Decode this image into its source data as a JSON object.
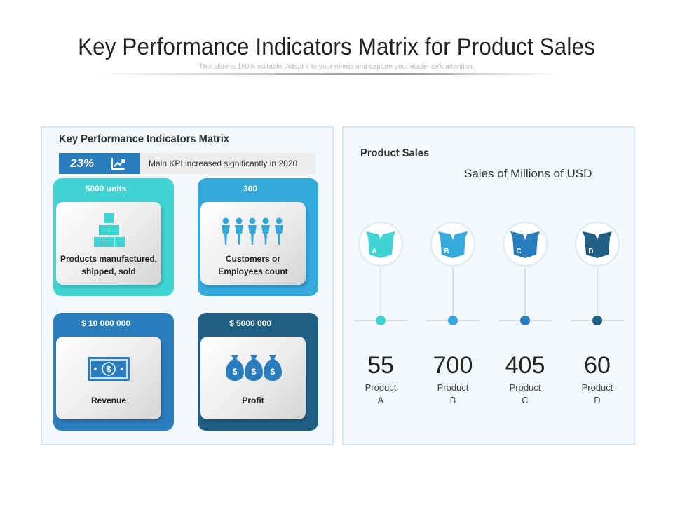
{
  "header": {
    "title": "Key Performance Indicators Matrix for Product Sales",
    "subtitle": "This slide is 100% editable. Adapt it to your needs and capture your audience's attention."
  },
  "left_panel": {
    "title": "Key Performance Indicators Matrix",
    "kpi": {
      "percent": "23%",
      "icon": "trend-up-icon",
      "text": "Main KPI increased significantly in 2020"
    },
    "cards": [
      {
        "value": "5000 units",
        "label_line1": "Products manufactured,",
        "label_line2": "shipped, sold",
        "icon": "boxes-stack-icon",
        "color": "#3fd3d3"
      },
      {
        "value": "300",
        "label_line1": "Customers or",
        "label_line2": "Employees count",
        "icon": "people-group-icon",
        "color": "#35a8dc"
      },
      {
        "value": "$ 10 000 000",
        "label_line1": "Revenue",
        "icon": "banknote-icon",
        "color": "#2a7dbd"
      },
      {
        "value": "$ 5000 000",
        "label_line1": "Profit",
        "icon": "money-bags-icon",
        "color": "#1f5f86"
      }
    ]
  },
  "right_panel": {
    "title": "Product Sales",
    "subtitle": "Sales of Millions of USD"
  },
  "chart_data": {
    "type": "table",
    "title": "Product Sales",
    "subtitle": "Sales of Millions of USD",
    "categories": [
      {
        "line1": "Product",
        "line2": "A",
        "badge": "A"
      },
      {
        "line1": "Product",
        "line2": "B",
        "badge": "B"
      },
      {
        "line1": "Product",
        "line2": "C",
        "badge": "C"
      },
      {
        "line1": "Product",
        "line2": "D",
        "badge": "D"
      }
    ],
    "values": [
      55,
      700,
      405,
      60
    ],
    "colors": [
      "#3fd3d3",
      "#35a8dc",
      "#2a7dbd",
      "#1f5f86"
    ]
  }
}
